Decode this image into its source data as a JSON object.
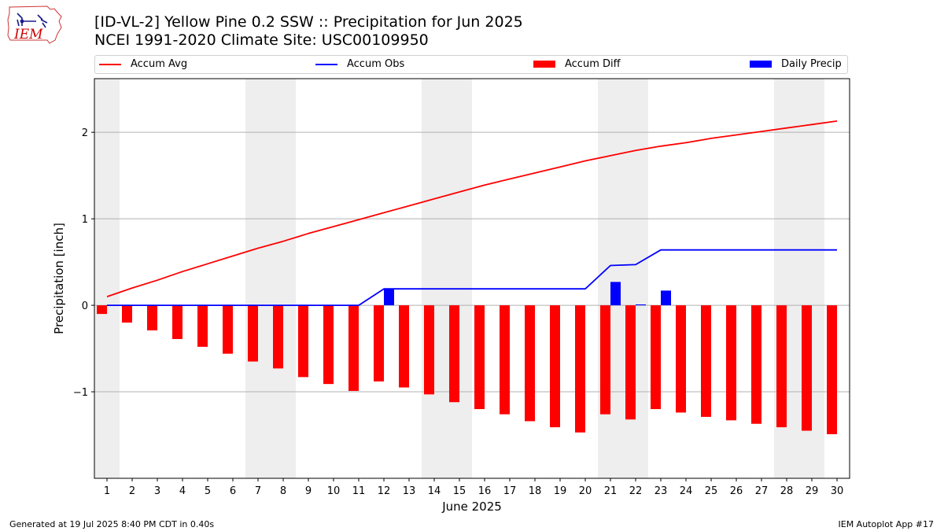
{
  "header": {
    "title_line1": "[ID-VL-2] Yellow Pine 0.2 SSW :: Precipitation for Jun 2025",
    "title_line2": "NCEI 1991-2020 Climate Site: USC00109950"
  },
  "logo": {
    "text": "IEM"
  },
  "footer": {
    "left": "Generated at 19 Jul 2025 8:40 PM CDT in 0.40s",
    "right": "IEM Autoplot App #17"
  },
  "colors": {
    "accum_avg": "#ff0000",
    "accum_obs": "#0000ff",
    "accum_diff": "#ff0000",
    "daily_precip": "#0000ff",
    "weekend_shade": "#eeeeee",
    "grid": "#b0b0b0"
  },
  "chart_data": {
    "type": "bar",
    "xlabel": "June 2025",
    "ylabel": "Precipitation [inch]",
    "x": [
      1,
      2,
      3,
      4,
      5,
      6,
      7,
      8,
      9,
      10,
      11,
      12,
      13,
      14,
      15,
      16,
      17,
      18,
      19,
      20,
      21,
      22,
      23,
      24,
      25,
      26,
      27,
      28,
      29,
      30
    ],
    "xlim": [
      0.5,
      30.5
    ],
    "ylim": [
      -2.0,
      2.62
    ],
    "yticks": [
      2,
      1,
      0,
      -1
    ],
    "ytick_labels": [
      "2",
      "1",
      "0",
      "−1"
    ],
    "grid": "horizontal",
    "legend_position": "top",
    "shaded_days": [
      [
        0.5,
        1.5
      ],
      [
        6.5,
        8.5
      ],
      [
        13.5,
        15.5
      ],
      [
        20.5,
        22.5
      ],
      [
        27.5,
        29.5
      ]
    ],
    "series": [
      {
        "name": "Accum Avg",
        "kind": "line",
        "values": [
          0.1,
          0.2,
          0.29,
          0.39,
          0.48,
          0.57,
          0.66,
          0.74,
          0.83,
          0.91,
          0.99,
          1.07,
          1.15,
          1.23,
          1.31,
          1.39,
          1.46,
          1.53,
          1.6,
          1.67,
          1.73,
          1.79,
          1.84,
          1.88,
          1.93,
          1.97,
          2.01,
          2.05,
          2.09,
          2.13
        ]
      },
      {
        "name": "Accum Obs",
        "kind": "line",
        "values": [
          0,
          0,
          0,
          0,
          0,
          0,
          0,
          0,
          0,
          0,
          0,
          0.19,
          0.19,
          0.19,
          0.19,
          0.19,
          0.19,
          0.19,
          0.19,
          0.19,
          0.46,
          0.47,
          0.64,
          0.64,
          0.64,
          0.64,
          0.64,
          0.64,
          0.64,
          0.64
        ]
      },
      {
        "name": "Accum Diff",
        "kind": "bar",
        "values": [
          -0.1,
          -0.2,
          -0.29,
          -0.39,
          -0.48,
          -0.56,
          -0.65,
          -0.73,
          -0.83,
          -0.91,
          -0.99,
          -0.88,
          -0.95,
          -1.03,
          -1.12,
          -1.2,
          -1.26,
          -1.34,
          -1.41,
          -1.47,
          -1.26,
          -1.32,
          -1.2,
          -1.24,
          -1.29,
          -1.33,
          -1.37,
          -1.41,
          -1.45,
          -1.49
        ]
      },
      {
        "name": "Daily Precip",
        "kind": "bar",
        "values": [
          0,
          0,
          0,
          0,
          0,
          0,
          0,
          0,
          0,
          0,
          0,
          0.19,
          0,
          0,
          0,
          0,
          0,
          0,
          0,
          0,
          0.27,
          0.01,
          0.17,
          0,
          0,
          0,
          0,
          0,
          0,
          0
        ]
      }
    ]
  }
}
